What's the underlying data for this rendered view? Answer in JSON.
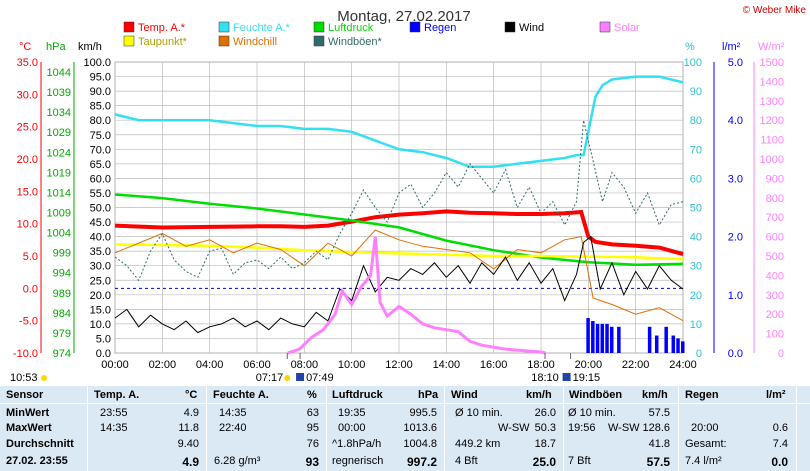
{
  "header": {
    "title": "Montag, 27.02.2017",
    "copyright": "© Weber Mike"
  },
  "legend": [
    {
      "label": "Temp. A.*",
      "color": "#ff0000"
    },
    {
      "label": "Feuchte A.*",
      "color": "#33e0f0"
    },
    {
      "label": "Luftdruck",
      "color": "#00dd00"
    },
    {
      "label": "Regen",
      "color": "#0000ff"
    },
    {
      "label": "Wind",
      "color": "#000000"
    },
    {
      "label": "Solar",
      "color": "#ff80ff"
    },
    {
      "label": "Taupunkt*",
      "color": "#ffff00"
    },
    {
      "label": "Windchill",
      "color": "#e07000"
    },
    {
      "label": "Windböen*",
      "color": "#2e6b6b"
    }
  ],
  "axis_units": {
    "temp": "°C",
    "pressure": "hPa",
    "wind": "km/h",
    "humidity": "%",
    "rain": "l/m²",
    "solar": "W/m²"
  },
  "chart_data": {
    "type": "line",
    "x_labels": [
      "00:00",
      "02:00",
      "04:00",
      "06:00",
      "08:00",
      "10:00",
      "12:00",
      "14:00",
      "16:00",
      "18:00",
      "20:00",
      "22:00",
      "24:00"
    ],
    "temp_ticks": [
      "35.0",
      "30.0",
      "25.0",
      "20.0",
      "15.0",
      "10.0",
      "5.0",
      "0.0",
      "-5.0",
      "-10.0"
    ],
    "pressure_ticks": [
      "1044",
      "1039",
      "1034",
      "1029",
      "1024",
      "1019",
      "1014",
      "1009",
      "1004",
      "999",
      "994",
      "989",
      "984",
      "979",
      "974"
    ],
    "wind_ticks": [
      "100.0",
      "95.0",
      "90.0",
      "85.0",
      "80.0",
      "75.0",
      "70.0",
      "65.0",
      "60.0",
      "55.0",
      "50.0",
      "45.0",
      "40.0",
      "35.0",
      "30.0",
      "25.0",
      "20.0",
      "15.0",
      "10.0",
      "5.0",
      "0.0"
    ],
    "humidity_ticks": [
      "100",
      "90",
      "80",
      "70",
      "60",
      "50",
      "40",
      "30",
      "20",
      "10",
      "0"
    ],
    "rain_ticks": [
      "5.0",
      "4.0",
      "3.0",
      "2.0",
      "1.0",
      "0.0"
    ],
    "solar_ticks": [
      "1500",
      "1400",
      "1300",
      "1200",
      "1100",
      "1000",
      "900",
      "800",
      "700",
      "600",
      "500",
      "400",
      "300",
      "200",
      "100",
      "0"
    ],
    "ranges": {
      "hours": [
        0,
        24
      ],
      "temp": [
        -10,
        35
      ],
      "pressure": [
        974,
        1046.5
      ],
      "wind": [
        0,
        100
      ],
      "humidity": [
        0,
        100
      ],
      "rain": [
        0,
        5
      ],
      "solar": [
        0,
        1500
      ]
    },
    "series": [
      {
        "name": "Temp. A.*",
        "axis": "temp",
        "color": "#ff0000",
        "x": [
          0,
          2,
          4,
          6,
          7,
          8,
          9,
          10,
          11,
          12,
          13,
          14,
          15,
          16,
          17,
          18,
          19,
          19.7,
          20,
          20.3,
          21,
          22,
          23,
          24
        ],
        "y": [
          9.7,
          9.4,
          9.5,
          9.6,
          9.6,
          9.5,
          9.7,
          10.3,
          11.0,
          11.4,
          11.6,
          11.9,
          11.7,
          11.6,
          11.5,
          11.5,
          11.6,
          11.8,
          8.0,
          7.2,
          6.8,
          6.6,
          6.3,
          5.3
        ]
      },
      {
        "name": "Feuchte A.*",
        "axis": "humidity",
        "color": "#33e0f0",
        "x": [
          0,
          1,
          2,
          3,
          4,
          5,
          6,
          7,
          8,
          9,
          10,
          11,
          12,
          13,
          14,
          15,
          16,
          17,
          18,
          19,
          19.5,
          19.8,
          20.3,
          20.6,
          21,
          22,
          23,
          24
        ],
        "y": [
          82,
          80,
          80,
          80,
          80,
          79,
          78,
          78,
          77,
          77,
          76,
          73,
          70,
          69,
          67,
          64,
          64,
          65,
          66,
          67,
          68,
          68,
          88,
          92,
          94,
          95,
          95,
          93
        ]
      },
      {
        "name": "Luftdruck",
        "axis": "pressure",
        "color": "#00dd00",
        "x": [
          0,
          2,
          4,
          6,
          8,
          10,
          12,
          14,
          16,
          18,
          20,
          22,
          24
        ],
        "y": [
          1013.5,
          1012.6,
          1011.2,
          1010.0,
          1008.5,
          1007.0,
          1005.3,
          1002.0,
          999.6,
          997.8,
          996.6,
          996.0,
          996.2
        ]
      },
      {
        "name": "Taupunkt*",
        "axis": "temp",
        "color": "#ffff00",
        "x": [
          0,
          2,
          4,
          6,
          8,
          10,
          12,
          14,
          16,
          18,
          20,
          22,
          24
        ],
        "y": [
          6.8,
          6.7,
          6.6,
          6.3,
          5.9,
          5.6,
          5.4,
          5.2,
          5.0,
          5.0,
          4.9,
          4.8,
          4.5
        ]
      },
      {
        "name": "Windchill",
        "axis": "temp",
        "color": "#e07000",
        "x": [
          0,
          1,
          2,
          3,
          4,
          5,
          6,
          7,
          8,
          9,
          10,
          11,
          12,
          13,
          14,
          15,
          16,
          17,
          18,
          19,
          19.7,
          20.2,
          21,
          22,
          23,
          24
        ],
        "y": [
          5.5,
          7.0,
          8.5,
          6.5,
          7.5,
          5.5,
          7.0,
          6.0,
          3.5,
          7.0,
          5.0,
          9.0,
          7.5,
          6.5,
          6.0,
          5.5,
          3.0,
          6.0,
          5.5,
          7.5,
          8.0,
          -1.5,
          -2.5,
          -4.0,
          -3.0,
          -5.0
        ]
      },
      {
        "name": "Wind",
        "axis": "wind",
        "color": "#000000",
        "x": [
          0,
          0.5,
          1,
          1.5,
          2,
          2.5,
          3,
          3.5,
          4,
          4.5,
          5,
          5.5,
          6,
          6.5,
          7,
          7.5,
          8,
          8.5,
          9,
          9.5,
          10,
          10.5,
          11,
          11.5,
          12,
          12.5,
          13,
          13.5,
          14,
          14.5,
          15,
          15.5,
          16,
          16.5,
          17,
          17.5,
          18,
          18.5,
          19,
          19.5,
          19.8,
          20.1,
          20.5,
          21,
          21.5,
          22,
          22.5,
          23,
          23.5,
          24
        ],
        "y": [
          12,
          15,
          9,
          13,
          10,
          8,
          11,
          7,
          9,
          10,
          12,
          9,
          11,
          8,
          12,
          10,
          9,
          14,
          11,
          22,
          18,
          30,
          21,
          26,
          25,
          29,
          27,
          31,
          26,
          30,
          24,
          31,
          27,
          33,
          25,
          31,
          24,
          29,
          18,
          27,
          38,
          40,
          22,
          31,
          20,
          28,
          22,
          30,
          25,
          22
        ]
      },
      {
        "name": "Windböen*",
        "axis": "wind",
        "color": "#2e6b6b",
        "x": [
          0,
          0.5,
          1,
          1.5,
          2,
          2.5,
          3,
          3.5,
          4,
          4.5,
          5,
          5.5,
          6,
          6.5,
          7,
          7.5,
          8,
          8.5,
          9,
          9.5,
          10,
          10.5,
          11,
          11.5,
          12,
          12.5,
          13,
          13.5,
          14,
          14.5,
          15,
          15.5,
          16,
          16.5,
          17,
          17.5,
          18,
          18.5,
          19,
          19.5,
          19.8,
          20.2,
          20.6,
          21,
          21.5,
          22,
          22.5,
          23,
          23.5,
          24
        ],
        "y": [
          33,
          30,
          25,
          35,
          41,
          32,
          28,
          26,
          35,
          36,
          27,
          31,
          32,
          29,
          33,
          29,
          31,
          35,
          32,
          41,
          48,
          56,
          50,
          45,
          55,
          58,
          50,
          55,
          62,
          57,
          65,
          60,
          55,
          63,
          50,
          57,
          48,
          52,
          44,
          52,
          80,
          66,
          52,
          62,
          57,
          48,
          55,
          44,
          51,
          52
        ]
      },
      {
        "name": "Solar",
        "axis": "solar",
        "color": "#ff80ff",
        "x": [
          7.3,
          7.8,
          8.3,
          8.8,
          9.3,
          9.6,
          10.0,
          10.4,
          10.8,
          11.0,
          11.2,
          11.5,
          12.0,
          12.5,
          13.0,
          13.5,
          14.0,
          14.5,
          15.0,
          15.5,
          16.0,
          16.5,
          17.0,
          17.5,
          18.0,
          18.2
        ],
        "y": [
          0,
          20,
          80,
          120,
          200,
          320,
          250,
          340,
          400,
          600,
          260,
          190,
          240,
          200,
          150,
          130,
          120,
          110,
          60,
          40,
          30,
          20,
          15,
          10,
          5,
          0
        ]
      },
      {
        "name": "Regen",
        "axis": "rain",
        "color": "#0000ff",
        "x": [
          20.0,
          20.2,
          20.4,
          20.6,
          20.8,
          21.0,
          21.3,
          22.6,
          22.9,
          23.3,
          23.6,
          23.8,
          24.0
        ],
        "y": [
          0.6,
          0.55,
          0.5,
          0.5,
          0.5,
          0.45,
          0.45,
          0.45,
          0.3,
          0.45,
          0.3,
          0.25,
          0.2
        ]
      }
    ]
  },
  "markers": {
    "time_top_left": "10:53",
    "sunrise": "07:17",
    "moonset": "07:49",
    "sunset": "18:10",
    "moonrise": "19:15"
  },
  "table": {
    "row_labels": {
      "header": "Sensor",
      "min": "MinWert",
      "max": "MaxWert",
      "avg": "Durchschnitt",
      "now": "27.02. 23:55"
    },
    "temp": {
      "title": "Temp. A.",
      "unit": "°C",
      "min_time": "23:55",
      "min": "4.9",
      "max_time": "14:35",
      "max": "11.8",
      "avg": "9.40",
      "now": "4.9"
    },
    "hum": {
      "title": "Feuchte A.",
      "unit": "%",
      "min_time": "14:35",
      "min": "63",
      "max_time": "22:40",
      "max": "95",
      "avg": "76",
      "abs": "6.28 g/m³",
      "now": "93"
    },
    "press": {
      "title": "Luftdruck",
      "unit": "hPa",
      "min_time": "19:35",
      "min": "995.5",
      "max_time": "00:00",
      "max": "1013.6",
      "trend": "^1.8hPa/h",
      "avg": "1004.8",
      "forecast": "regnerisch",
      "now": "997.2"
    },
    "wind": {
      "title": "Wind",
      "unit": "km/h",
      "r1_label": "Ø 10 min.",
      "r1": "26.0",
      "r2_label": "W-SW",
      "r2": "50.3",
      "r3_label": "449.2 km",
      "r3": "18.7",
      "r4_label": "4 Bft",
      "now": "25.0"
    },
    "gust": {
      "title": "Windböen",
      "unit": "km/h",
      "r1_label": "Ø 10 min.",
      "r1": "57.5",
      "r2_time": "19:56",
      "r2_label": "W-SW",
      "r2": "128.6",
      "r3": "41.8",
      "r4_label": "7 Bft",
      "now": "57.5"
    },
    "rain": {
      "title": "Regen",
      "unit": "l/m²",
      "r2_time": "20:00",
      "r2": "0.6",
      "r3_label": "Gesamt:",
      "r3": "7.4",
      "r4_label": "7.4 l/m²",
      "now": "0.0"
    }
  }
}
